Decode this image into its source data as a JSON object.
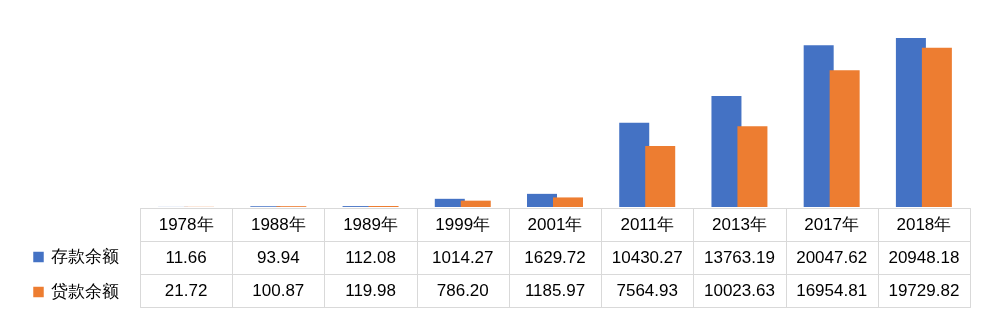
{
  "chart_data": {
    "type": "bar",
    "categories": [
      "1978年",
      "1988年",
      "1989年",
      "1999年",
      "2001年",
      "2011年",
      "2013年",
      "2017年",
      "2018年"
    ],
    "series": [
      {
        "name": "存款余额",
        "color": "#4472c4",
        "values": [
          11.66,
          93.94,
          112.08,
          1014.27,
          1629.72,
          10430.27,
          13763.19,
          20047.62,
          20948.18
        ],
        "value_labels": [
          "11.66",
          "93.94",
          "112.08",
          "1014.27",
          "1629.72",
          "10430.27",
          "13763.19",
          "20047.62",
          "20948.18"
        ]
      },
      {
        "name": "贷款余额",
        "color": "#ed7d31",
        "values": [
          21.72,
          100.87,
          119.98,
          786.2,
          1185.97,
          7564.93,
          10023.63,
          16954.81,
          19729.82
        ],
        "value_labels": [
          "21.72",
          "100.87",
          "119.98",
          "786.20",
          "1185.97",
          "7564.93",
          "10023.63",
          "16954.81",
          "19729.82"
        ]
      }
    ],
    "legend": "bottom left",
    "grid": false
  }
}
